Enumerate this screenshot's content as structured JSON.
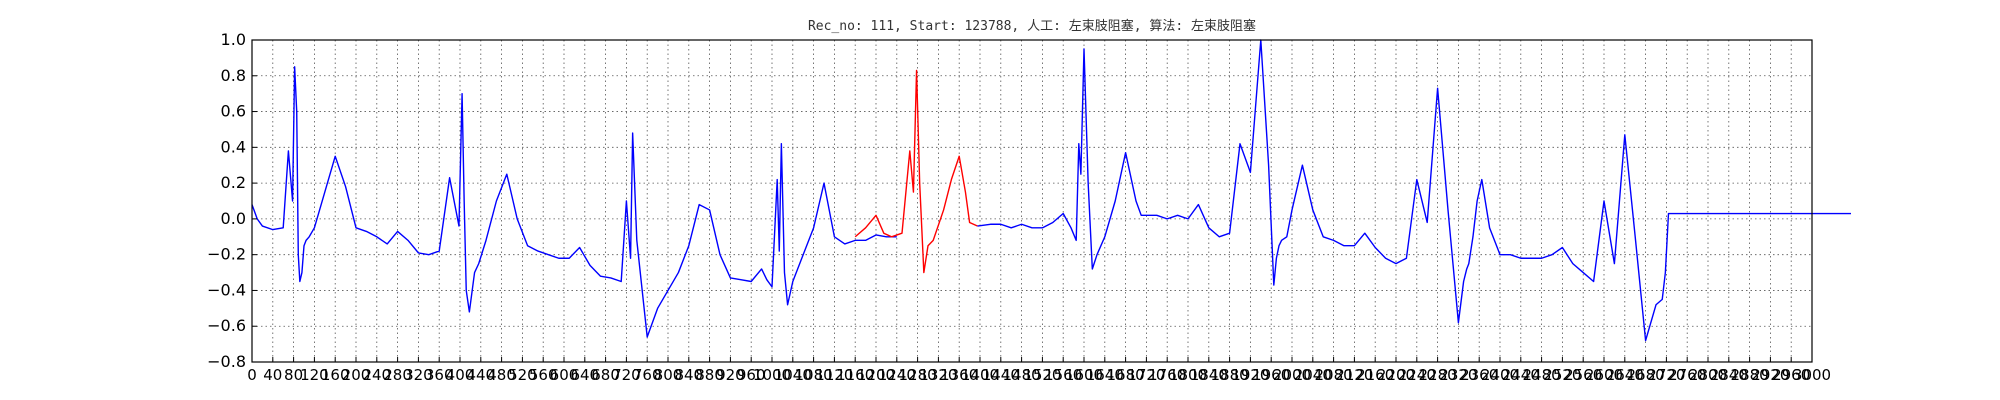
{
  "chart_data": {
    "type": "line",
    "title": "Rec_no: 111, Start: 123788, 人工: 左束肢阻塞, 算法: 左束肢阻塞",
    "xlabel": "",
    "ylabel": "",
    "xlim": [
      0,
      3000
    ],
    "ylim": [
      -0.8,
      1.0
    ],
    "grid": true,
    "yticks": [
      -0.8,
      -0.6,
      -0.4,
      -0.2,
      0.0,
      0.2,
      0.4,
      0.6,
      0.8,
      1.0
    ],
    "yticklabels": [
      "−0.8",
      "−0.6",
      "−0.4",
      "−0.2",
      "0.0",
      "0.2",
      "0.4",
      "0.6",
      "0.8",
      "1.0"
    ],
    "xticks": [
      0,
      40,
      80,
      120,
      160,
      200,
      240,
      280,
      320,
      360,
      400,
      440,
      480,
      520,
      560,
      600,
      640,
      680,
      720,
      760,
      800,
      840,
      880,
      920,
      960,
      1000,
      1040,
      1080,
      1120,
      1160,
      1200,
      1240,
      1280,
      1320,
      1360,
      1400,
      1440,
      1480,
      1520,
      1560,
      1600,
      1640,
      1680,
      1720,
      1760,
      1800,
      1840,
      1880,
      1920,
      1960,
      2000,
      2040,
      2080,
      2120,
      2160,
      2200,
      2240,
      2280,
      2320,
      2360,
      2400,
      2440,
      2480,
      2520,
      2560,
      2600,
      2640,
      2680,
      2720,
      2760,
      2800,
      2840,
      2880,
      2920,
      2960,
      3000
    ],
    "xticklabels": [
      "0",
      "40",
      "80",
      "120",
      "160",
      "200",
      "240",
      "280",
      "320",
      "360",
      "400",
      "440",
      "480",
      "520",
      "560",
      "600",
      "640",
      "680",
      "720",
      "760",
      "800",
      "840",
      "880",
      "920",
      "960",
      "1000",
      "1040",
      "1080",
      "1120",
      "1160",
      "1200",
      "1240",
      "1280",
      "1320",
      "1360",
      "1400",
      "1440",
      "1480",
      "1520",
      "1560",
      "1600",
      "1640",
      "1680",
      "1720",
      "1760",
      "1800",
      "1840",
      "1880",
      "1920",
      "1960",
      "2000",
      "2040",
      "2080",
      "2120",
      "2160",
      "2200",
      "2240",
      "2280",
      "2320",
      "2360",
      "2400",
      "2440",
      "2480",
      "2520",
      "2560",
      "2600",
      "2640",
      "2680",
      "2720",
      "2760",
      "2800",
      "2840",
      "2880",
      "2920",
      "2960",
      "3000"
    ],
    "series": [
      {
        "color": "#0000ff",
        "x": [
          0,
          10,
          20,
          40,
          60,
          70,
          78,
          82,
          86,
          89,
          92,
          96,
          100,
          104,
          110,
          120,
          140,
          160,
          180,
          200,
          220,
          240,
          260,
          280,
          300,
          320,
          340,
          360,
          380,
          398,
          404,
          408,
          412,
          418,
          428,
          436,
          450,
          470,
          490,
          510,
          530,
          550,
          570,
          590,
          610,
          630,
          650,
          670,
          690,
          710,
          720,
          728,
          732,
          740,
          760,
          780,
          800,
          820,
          840,
          860,
          880,
          900,
          920,
          940,
          960,
          980,
          990,
          1000,
          1010,
          1014,
          1018,
          1024,
          1030,
          1040,
          1060,
          1080,
          1100,
          1120,
          1140,
          1160,
          1180,
          1200,
          1220,
          1240,
          1260,
          1280,
          1300,
          1320,
          1340,
          1360,
          1380,
          1400,
          1420,
          1440,
          1460,
          1480,
          1500,
          1520,
          1540,
          1560,
          1580,
          1600,
          1620,
          1640,
          1660,
          1680,
          1700,
          1720,
          1735
        ],
        "y": [
          0.08,
          0.0,
          -0.04,
          -0.06,
          -0.05,
          0.38,
          0.1,
          0.85,
          0.6,
          -0.2,
          -0.35,
          -0.3,
          -0.15,
          -0.12,
          -0.1,
          -0.05,
          0.15,
          0.35,
          0.18,
          -0.05,
          -0.07,
          -0.1,
          -0.14,
          -0.07,
          -0.12,
          -0.19,
          -0.2,
          -0.18,
          0.23,
          -0.04,
          0.7,
          0.1,
          -0.4,
          -0.52,
          -0.3,
          -0.25,
          -0.12,
          0.1,
          0.25,
          0.0,
          -0.15,
          -0.18,
          -0.2,
          -0.22,
          -0.22,
          -0.16,
          -0.26,
          -0.32,
          -0.33,
          -0.35,
          0.1,
          -0.22,
          0.48,
          -0.12,
          -0.66,
          -0.5,
          -0.4,
          -0.3,
          -0.15,
          0.08,
          0.05,
          -0.2,
          -0.33,
          -0.34,
          -0.35,
          -0.28,
          -0.34,
          -0.38,
          0.22,
          -0.18,
          0.42,
          -0.3,
          -0.48,
          -0.35,
          -0.2,
          -0.05,
          0.2,
          -0.1,
          -0.14,
          -0.12,
          -0.12,
          -0.09,
          -0.1,
          -0.1,
          null,
          null,
          null,
          null,
          null,
          null,
          null,
          null,
          null,
          null,
          null,
          null,
          null,
          null,
          null,
          null,
          null,
          null,
          null,
          null,
          null,
          null,
          null,
          null,
          null
        ]
      },
      {
        "color": "#ff0000",
        "x": [
          1160,
          1180,
          1200,
          1215,
          1230,
          1250,
          1265,
          1272,
          1278,
          1284,
          1292,
          1300,
          1310,
          1330,
          1345,
          1360,
          1372,
          1380,
          1395
        ],
        "y": [
          -0.1,
          -0.05,
          0.02,
          -0.08,
          -0.1,
          -0.08,
          0.38,
          0.15,
          0.83,
          0.2,
          -0.3,
          -0.15,
          -0.12,
          0.05,
          0.22,
          0.35,
          0.15,
          -0.02,
          -0.04
        ]
      },
      {
        "color": "#0000ff",
        "x": [
          1395,
          1420,
          1440,
          1460,
          1480,
          1500,
          1520,
          1540,
          1560,
          1575,
          1585,
          1590,
          1594,
          1600,
          1608,
          1616,
          1625,
          1640,
          1660,
          1680,
          1700,
          1710,
          1720,
          1740,
          1760,
          1780,
          1800,
          1820,
          1840,
          1860,
          1880,
          1900,
          1920,
          1940,
          1955,
          1965,
          1970,
          1975,
          1980,
          1990,
          2000,
          2020,
          2040,
          2060,
          2080,
          2100,
          2120,
          2140,
          2160,
          2180,
          2200,
          2220,
          2240,
          2260,
          2280,
          2300,
          2320,
          2330,
          2336,
          2340,
          2348,
          2356,
          2365,
          2380,
          2400,
          2420,
          2440,
          2460,
          2480,
          2500,
          2520,
          2540,
          2560,
          2580,
          2600,
          2620,
          2640,
          2660,
          2680,
          2700,
          2712,
          2718,
          2724,
          2730,
          2738,
          2746,
          2760,
          2780,
          2800,
          2820,
          2840,
          2860,
          2880,
          2900,
          2920,
          2940,
          2960,
          2980,
          3000,
          3005,
          3010,
          3018,
          3026,
          3040,
          3055,
          3075
        ],
        "y": [
          -0.04,
          -0.03,
          -0.03,
          -0.05,
          -0.03,
          -0.05,
          -0.05,
          -0.02,
          0.03,
          -0.05,
          -0.12,
          0.42,
          0.25,
          0.95,
          0.2,
          -0.28,
          -0.2,
          -0.1,
          0.1,
          0.37,
          0.1,
          0.02,
          0.02,
          0.02,
          0.0,
          0.02,
          0.0,
          0.08,
          -0.05,
          -0.1,
          -0.08,
          0.42,
          0.26,
          1.0,
          0.3,
          -0.37,
          -0.22,
          -0.15,
          -0.12,
          -0.1,
          0.05,
          0.3,
          0.05,
          -0.1,
          -0.12,
          -0.15,
          -0.15,
          -0.08,
          -0.16,
          -0.22,
          -0.25,
          -0.22,
          0.22,
          -0.02,
          0.73,
          0.05,
          -0.58,
          -0.35,
          -0.28,
          -0.25,
          -0.1,
          0.1,
          0.22,
          -0.05,
          -0.2,
          -0.2,
          -0.22,
          -0.22,
          -0.22,
          -0.2,
          -0.16,
          -0.25,
          -0.3,
          -0.35,
          0.1,
          -0.25,
          0.47,
          -0.1,
          -0.68,
          -0.48,
          -0.45,
          -0.3,
          0.03,
          0.03,
          0.03,
          0.03,
          0.03,
          0.03,
          0.03,
          0.03,
          0.03,
          0.03,
          0.03,
          0.03,
          0.03,
          0.03,
          0.03,
          0.03,
          0.03,
          0.03,
          0.03,
          0.03,
          0.03,
          0.03,
          0.03,
          0.03
        ]
      }
    ]
  }
}
